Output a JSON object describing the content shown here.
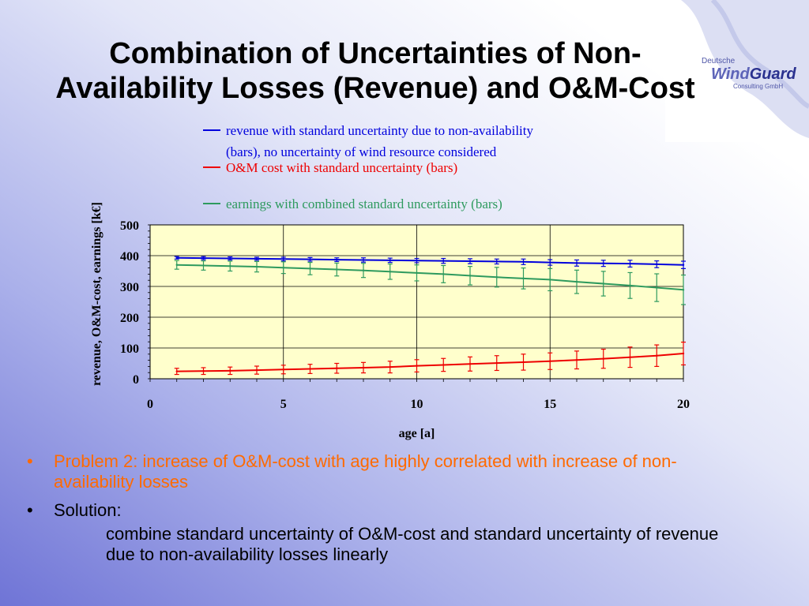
{
  "slide": {
    "title_line1": "Combination of Uncertainties of Non-",
    "title_line2": "Availability Losses (Revenue) and O&M-Cost",
    "logo": {
      "text_top": "Deutsche",
      "text_main_a": "Wind",
      "text_main_b": "Guard",
      "text_bottom": "Consulting GmbH"
    },
    "bullets": [
      {
        "text": "Problem 2: increase of O&M-cost with age highly correlated with increase of non-availability losses",
        "color": "#ff6a00"
      },
      {
        "text": "Solution:",
        "color": "#000000"
      }
    ],
    "sub_text": "combine standard uncertainty of O&M-cost and standard uncertainty of revenue due to non-availability losses linearly"
  },
  "chart_data": {
    "type": "line",
    "xlabel": "age [a]",
    "ylabel": "revenue, O&M-cost, earnings [k€]",
    "xlim": [
      0,
      20
    ],
    "ylim": [
      0,
      500
    ],
    "xticks": [
      0,
      5,
      10,
      15,
      20
    ],
    "yticks": [
      0,
      100,
      200,
      300,
      400,
      500
    ],
    "grid": true,
    "plot_background": "#ffffcc",
    "legend_position": "top",
    "x": [
      1,
      2,
      3,
      4,
      5,
      6,
      7,
      8,
      9,
      10,
      11,
      12,
      13,
      14,
      15,
      16,
      17,
      18,
      19,
      20
    ],
    "series": [
      {
        "name": "revenue with standard uncertainty due to non-availability (bars), no uncertainty of wind resource considered",
        "legend_lines": [
          "revenue with standard uncertainty due to non-availability",
          "(bars), no uncertainty of wind resource considered"
        ],
        "color": "#0000dd",
        "values": [
          393,
          392,
          391,
          390,
          389,
          388,
          387,
          386,
          385,
          384,
          383,
          382,
          381,
          380,
          378,
          376,
          375,
          374,
          372,
          370
        ],
        "errors": [
          4,
          5,
          5,
          5,
          6,
          6,
          6,
          7,
          7,
          7,
          8,
          8,
          8,
          9,
          9,
          10,
          10,
          11,
          11,
          12
        ]
      },
      {
        "name": "O&M cost with standard uncertainty (bars)",
        "legend_lines": [
          "O&M cost with standard uncertainty (bars)"
        ],
        "color": "#ee0000",
        "values": [
          24,
          25,
          26,
          28,
          30,
          32,
          34,
          36,
          38,
          42,
          45,
          48,
          51,
          54,
          57,
          61,
          65,
          70,
          75,
          82
        ],
        "errors": [
          10,
          11,
          12,
          13,
          14,
          15,
          16,
          17,
          19,
          20,
          21,
          23,
          24,
          26,
          27,
          29,
          31,
          33,
          35,
          37
        ]
      },
      {
        "name": "earnings with combined standard uncertainty (bars)",
        "legend_lines": [
          "earnings with combined standard uncertainty (bars)"
        ],
        "color": "#2e9a5e",
        "values": [
          370,
          368,
          366,
          364,
          361,
          358,
          355,
          352,
          348,
          344,
          340,
          335,
          330,
          326,
          322,
          315,
          309,
          303,
          296,
          289
        ],
        "errors": [
          14,
          15,
          16,
          17,
          19,
          20,
          21,
          23,
          25,
          26,
          28,
          30,
          32,
          34,
          36,
          38,
          40,
          42,
          45,
          48
        ]
      }
    ]
  }
}
